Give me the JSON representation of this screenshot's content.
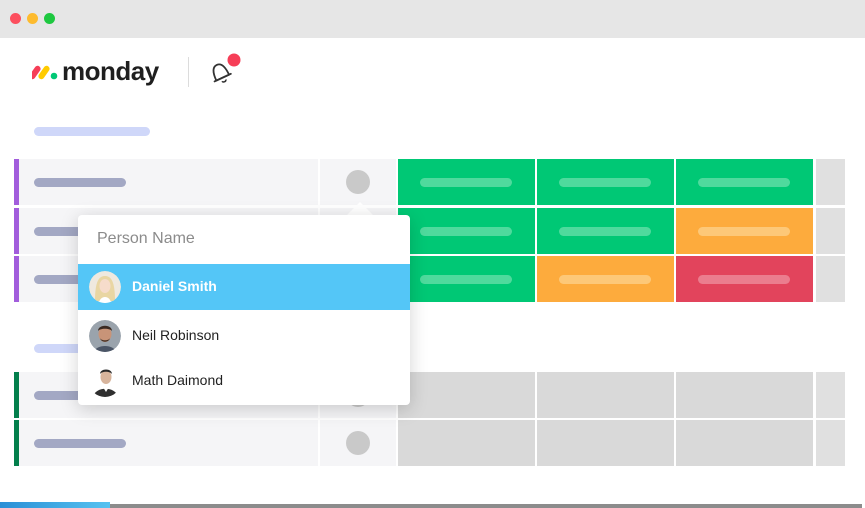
{
  "window": {
    "controls": [
      {
        "name": "close",
        "color": "#fc4f5e"
      },
      {
        "name": "minimize",
        "color": "#fdbb2e"
      },
      {
        "name": "maximize",
        "color": "#1ec840"
      }
    ]
  },
  "header": {
    "logo_text": "monday",
    "notification_icon": "bell-icon",
    "notification_badge_color": "#f63e57"
  },
  "colors": {
    "green": "#00c875",
    "orange": "#fdab3d",
    "red": "#e2445c",
    "grey": "#d9d9d9",
    "group1_stripe": "#a25ddc",
    "group2_stripe": "#037f4c",
    "selected": "#54c6f7"
  },
  "board": {
    "group1_status_rows": [
      [
        "green",
        "green",
        "green"
      ],
      [
        "green",
        "green",
        "orange"
      ],
      [
        "green",
        "orange",
        "red"
      ]
    ],
    "group2_status_rows": [
      [
        "grey",
        "grey",
        "grey"
      ],
      [
        "grey",
        "grey",
        "grey"
      ]
    ]
  },
  "person_picker": {
    "placeholder": "Person Name",
    "options": [
      {
        "name": "Daniel Smith",
        "selected": true
      },
      {
        "name": "Neil Robinson",
        "selected": false
      },
      {
        "name": "Math Daimond",
        "selected": false
      }
    ]
  }
}
